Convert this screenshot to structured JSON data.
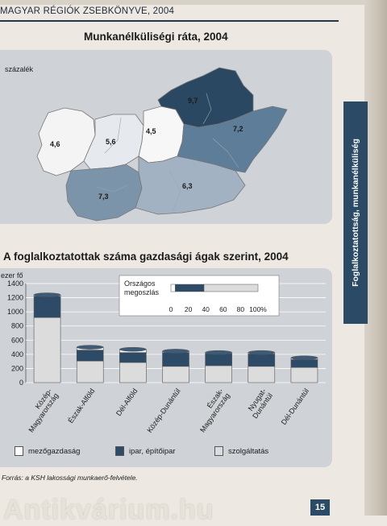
{
  "running_head": "MAGYAR RÉGIÓK ZSEBKÖNYVE, 2004",
  "map": {
    "title": "Munkanélküliségi ráta, 2004",
    "unit": "százalék",
    "regions": [
      {
        "name": "Nyugat-Dunántúl",
        "value": "4,6",
        "color": "#f4f4f4"
      },
      {
        "name": "Közép-Dunántúl",
        "value": "5,6",
        "color": "#e6eaee"
      },
      {
        "name": "Közép-Magyarország",
        "value": "4,5",
        "color": "#f7f7f7"
      },
      {
        "name": "Dél-Dunántúl",
        "value": "7,3",
        "color": "#7c94aa"
      },
      {
        "name": "Dél-Alföld",
        "value": "6,3",
        "color": "#a3b2c2"
      },
      {
        "name": "Észak-Alföld",
        "value": "7,2",
        "color": "#5d7d99"
      },
      {
        "name": "Észak-Magyarország",
        "value": "9,7",
        "color": "#2b4863"
      }
    ]
  },
  "side_tab": "Foglalkoztatottság, munkanélküliség",
  "chart": {
    "title": "A foglalkoztatottak száma gazdasági ágak szerint, 2004",
    "unit": "ezer fő",
    "inset": {
      "label_line1": "Országos",
      "label_line2": "megoszlás",
      "ticks": [
        "0",
        "20",
        "40",
        "60",
        "80",
        "100%"
      ]
    },
    "legend": [
      "mezőgazdaság",
      "ipar, építőipar",
      "szolgáltatás"
    ]
  },
  "chart_data": {
    "type": "bar",
    "stacked": true,
    "categories": [
      "Közép-Magyarország",
      "Észak-Alföld",
      "Dél-Alföld",
      "Közép-Dunántúl",
      "Észak-Magyarország",
      "Nyugat-Dunántúl",
      "Dél-Dunántúl"
    ],
    "category_labels": [
      [
        "Közép-",
        "Magyarország"
      ],
      [
        "Észak-Alföld"
      ],
      [
        "Dél-Alföld"
      ],
      [
        "Közép-Dunántúl"
      ],
      [
        "Észak-",
        "Magyarország"
      ],
      [
        "Nyugat-",
        "Dunántúl"
      ],
      [
        "Dél-Dunántúl"
      ]
    ],
    "series": [
      {
        "name": "mezőgazdaság",
        "values": [
          20,
          40,
          45,
          20,
          15,
          20,
          25
        ]
      },
      {
        "name": "ipar, építőipar",
        "values": [
          300,
          155,
          140,
          195,
          170,
          175,
          110
        ]
      },
      {
        "name": "szolgáltatás",
        "values": [
          920,
          305,
          285,
          230,
          240,
          230,
          215
        ]
      }
    ],
    "ylim": [
      0,
      1400
    ],
    "yticks": [
      0,
      200,
      400,
      600,
      800,
      1000,
      1200,
      1400
    ],
    "ylabel": "ezer fő",
    "colors": {
      "mezőgazdaság": "#ffffff",
      "ipar, építőipar": "#2d4b67",
      "szolgáltatás": "#dcdcdc"
    },
    "inset_bar": {
      "mezőgazdaság": 5,
      "ipar, építőipar": 33,
      "szolgáltatás": 62
    },
    "grid": true
  },
  "source": "Forrás: a KSH lakossági munkaerő-felvétele.",
  "watermark": "Antikvárium.hu",
  "page_number": "15"
}
